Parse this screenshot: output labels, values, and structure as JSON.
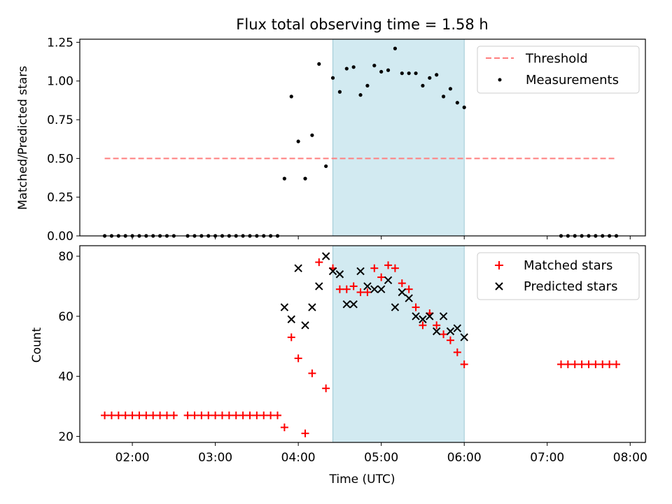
{
  "figure": {
    "title": "Flux total observing time = 1.58 h",
    "xlabel": "Time (UTC)"
  },
  "chart_data": [
    {
      "type": "scatter",
      "ylabel": "Matched/Predicted stars",
      "xlim": [
        "01:22",
        "08:11"
      ],
      "ylim": [
        0,
        1.27
      ],
      "yticks": [
        0.0,
        0.25,
        0.5,
        0.75,
        1.0,
        1.25
      ],
      "ytick_labels": [
        "0.00",
        "0.25",
        "0.50",
        "0.75",
        "1.00",
        "1.25"
      ],
      "xticks": [
        "02:00",
        "03:00",
        "04:00",
        "05:00",
        "06:00",
        "07:00",
        "08:00"
      ],
      "xtick_labels_visible": false,
      "shaded_interval": [
        "04:25",
        "06:00"
      ],
      "shaded_color": "#add8e6",
      "legend_position": "upper-right",
      "series": [
        {
          "name": "Threshold",
          "kind": "line",
          "style": "dashed",
          "color": "#ff7f7f",
          "x": [
            "01:40",
            "07:50"
          ],
          "y": [
            0.5,
            0.5
          ]
        },
        {
          "name": "Measurements",
          "kind": "scatter",
          "marker": "dot",
          "color": "#000000",
          "x": [
            "01:40",
            "01:45",
            "01:50",
            "01:55",
            "02:00",
            "02:05",
            "02:10",
            "02:15",
            "02:20",
            "02:25",
            "02:30",
            "02:40",
            "02:45",
            "02:50",
            "02:55",
            "03:00",
            "03:05",
            "03:10",
            "03:15",
            "03:20",
            "03:25",
            "03:30",
            "03:35",
            "03:40",
            "03:45",
            "03:50",
            "03:55",
            "04:00",
            "04:05",
            "04:10",
            "04:15",
            "04:20",
            "04:25",
            "04:30",
            "04:35",
            "04:40",
            "04:45",
            "04:50",
            "04:55",
            "05:00",
            "05:05",
            "05:10",
            "05:15",
            "05:20",
            "05:25",
            "05:30",
            "05:35",
            "05:40",
            "05:45",
            "05:50",
            "05:55",
            "06:00",
            "07:10",
            "07:15",
            "07:20",
            "07:25",
            "07:30",
            "07:35",
            "07:40",
            "07:45",
            "07:50"
          ],
          "y": [
            0,
            0,
            0,
            0,
            0,
            0,
            0,
            0,
            0,
            0,
            0,
            0,
            0,
            0,
            0,
            0,
            0,
            0,
            0,
            0,
            0,
            0,
            0,
            0,
            0,
            0.37,
            0.9,
            0.61,
            0.37,
            0.65,
            1.11,
            0.45,
            1.02,
            0.93,
            1.08,
            1.09,
            0.91,
            0.97,
            1.1,
            1.06,
            1.07,
            1.21,
            1.05,
            1.05,
            1.05,
            0.97,
            1.02,
            1.04,
            0.9,
            0.95,
            0.86,
            0.83,
            0,
            0,
            0,
            0,
            0,
            0,
            0,
            0,
            0
          ]
        }
      ]
    },
    {
      "type": "scatter",
      "ylabel": "Count",
      "xlim": [
        "01:22",
        "08:11"
      ],
      "ylim": [
        18,
        83.5
      ],
      "yticks": [
        20,
        40,
        60,
        80
      ],
      "ytick_labels": [
        "20",
        "40",
        "60",
        "80"
      ],
      "xticks": [
        "02:00",
        "03:00",
        "04:00",
        "05:00",
        "06:00",
        "07:00",
        "08:00"
      ],
      "xtick_labels": [
        "02:00",
        "03:00",
        "04:00",
        "05:00",
        "06:00",
        "07:00",
        "08:00"
      ],
      "shaded_interval": [
        "04:25",
        "06:00"
      ],
      "shaded_color": "#add8e6",
      "legend_position": "upper-right",
      "series": [
        {
          "name": "Matched stars",
          "kind": "scatter",
          "marker": "plus",
          "color": "#ff0000",
          "x": [
            "01:40",
            "01:45",
            "01:50",
            "01:55",
            "02:00",
            "02:05",
            "02:10",
            "02:15",
            "02:20",
            "02:25",
            "02:30",
            "02:40",
            "02:45",
            "02:50",
            "02:55",
            "03:00",
            "03:05",
            "03:10",
            "03:15",
            "03:20",
            "03:25",
            "03:30",
            "03:35",
            "03:40",
            "03:45",
            "03:50",
            "03:55",
            "04:00",
            "04:05",
            "04:10",
            "04:15",
            "04:20",
            "04:25",
            "04:30",
            "04:35",
            "04:40",
            "04:45",
            "04:50",
            "04:55",
            "05:00",
            "05:05",
            "05:10",
            "05:15",
            "05:20",
            "05:25",
            "05:30",
            "05:35",
            "05:40",
            "05:45",
            "05:50",
            "05:55",
            "06:00",
            "07:10",
            "07:15",
            "07:20",
            "07:25",
            "07:30",
            "07:35",
            "07:40",
            "07:45",
            "07:50"
          ],
          "y": [
            27,
            27,
            27,
            27,
            27,
            27,
            27,
            27,
            27,
            27,
            27,
            27,
            27,
            27,
            27,
            27,
            27,
            27,
            27,
            27,
            27,
            27,
            27,
            27,
            27,
            23,
            53,
            46,
            21,
            41,
            78,
            36,
            76,
            69,
            69,
            70,
            68,
            68,
            76,
            73,
            77,
            76,
            71,
            69,
            63,
            57,
            61,
            57,
            54,
            52,
            48,
            44,
            44,
            44,
            44,
            44,
            44,
            44,
            44,
            44,
            44
          ]
        },
        {
          "name": "Predicted stars",
          "kind": "scatter",
          "marker": "x",
          "color": "#000000",
          "x": [
            "03:50",
            "03:55",
            "04:00",
            "04:05",
            "04:10",
            "04:15",
            "04:20",
            "04:25",
            "04:30",
            "04:35",
            "04:40",
            "04:45",
            "04:50",
            "04:55",
            "05:00",
            "05:05",
            "05:10",
            "05:15",
            "05:20",
            "05:25",
            "05:30",
            "05:35",
            "05:40",
            "05:45",
            "05:50",
            "05:55",
            "06:00"
          ],
          "y": [
            63,
            59,
            76,
            57,
            63,
            70,
            80,
            75,
            74,
            64,
            64,
            75,
            70,
            69,
            69,
            72,
            63,
            68,
            66,
            60,
            59,
            60,
            55,
            60,
            55,
            56,
            53
          ]
        }
      ]
    }
  ]
}
